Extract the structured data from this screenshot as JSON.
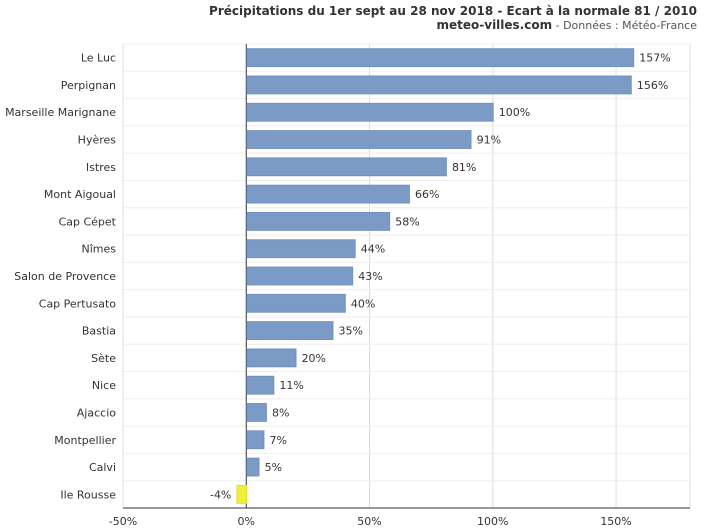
{
  "chart_data": {
    "type": "bar",
    "orientation": "horizontal",
    "title": "Précipitations du 1er sept au 28 nov 2018 - Ecart à la normale 81 / 2010",
    "subtitle_site": "meteo-villes.com",
    "subtitle_source": " - Données : Météo-France",
    "categories": [
      "Le Luc",
      "Perpignan",
      "Marseille Marignane",
      "Hyères",
      "Istres",
      "Mont Aigoual",
      "Cap Cépet",
      "Nîmes",
      "Salon de Provence",
      "Cap Pertusato",
      "Bastia",
      "Sète",
      "Nice",
      "Ajaccio",
      "Montpellier",
      "Calvi",
      "Ile Rousse"
    ],
    "values": [
      157,
      156,
      100,
      91,
      81,
      66,
      58,
      44,
      43,
      40,
      35,
      20,
      11,
      8,
      7,
      5,
      -4
    ],
    "value_labels": [
      "157%",
      "156%",
      "100%",
      "91%",
      "81%",
      "66%",
      "58%",
      "44%",
      "43%",
      "40%",
      "35%",
      "20%",
      "11%",
      "8%",
      "7%",
      "5%",
      "-4%"
    ],
    "xlim": [
      -50,
      180
    ],
    "xticks": [
      -50,
      0,
      50,
      100,
      150
    ],
    "xtick_labels": [
      "-50%",
      "0%",
      "50%",
      "100%",
      "150%"
    ],
    "grid": true,
    "colors": {
      "positive": "#7b9bc6",
      "negative": "#f0ef3c",
      "grid": "#dcdcdc",
      "axis": "#333333"
    }
  }
}
